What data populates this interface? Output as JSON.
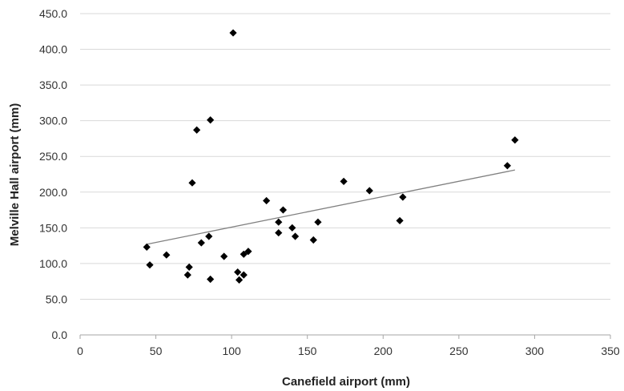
{
  "chart_data": {
    "type": "scatter",
    "xlabel": "Canefield airport (mm)",
    "ylabel": "Melville Hall airport (mm)",
    "xlim": [
      0,
      350
    ],
    "ylim": [
      0,
      450
    ],
    "xticks": [
      0,
      50,
      100,
      150,
      200,
      250,
      300,
      350
    ],
    "yticks": [
      0,
      50,
      100,
      150,
      200,
      250,
      300,
      350,
      400,
      450
    ],
    "x_tick_labels": [
      "0",
      "50",
      "100",
      "150",
      "200",
      "250",
      "300",
      "350"
    ],
    "y_tick_labels": [
      "0.0",
      "50.0",
      "100.0",
      "150.0",
      "200.0",
      "250.0",
      "300.0",
      "350.0",
      "400.0",
      "450.0"
    ],
    "grid": "horizontal",
    "legend": "none",
    "marker": "diamond",
    "marker_color": "#000000",
    "trendline_color": "#808080",
    "trendline": {
      "x": [
        44,
        287
      ],
      "y": [
        127,
        231
      ]
    },
    "points": [
      {
        "x": 44,
        "y": 123
      },
      {
        "x": 46,
        "y": 98
      },
      {
        "x": 57,
        "y": 112
      },
      {
        "x": 71,
        "y": 84
      },
      {
        "x": 72,
        "y": 95
      },
      {
        "x": 74,
        "y": 213
      },
      {
        "x": 77,
        "y": 287
      },
      {
        "x": 80,
        "y": 129
      },
      {
        "x": 85,
        "y": 138
      },
      {
        "x": 86,
        "y": 301
      },
      {
        "x": 86,
        "y": 78
      },
      {
        "x": 95,
        "y": 110
      },
      {
        "x": 101,
        "y": 423
      },
      {
        "x": 104,
        "y": 88
      },
      {
        "x": 105,
        "y": 77
      },
      {
        "x": 108,
        "y": 113
      },
      {
        "x": 108,
        "y": 84
      },
      {
        "x": 111,
        "y": 117
      },
      {
        "x": 123,
        "y": 188
      },
      {
        "x": 131,
        "y": 158
      },
      {
        "x": 131,
        "y": 143
      },
      {
        "x": 134,
        "y": 175
      },
      {
        "x": 140,
        "y": 150
      },
      {
        "x": 142,
        "y": 138
      },
      {
        "x": 154,
        "y": 133
      },
      {
        "x": 157,
        "y": 158
      },
      {
        "x": 174,
        "y": 215
      },
      {
        "x": 191,
        "y": 202
      },
      {
        "x": 211,
        "y": 160
      },
      {
        "x": 213,
        "y": 193
      },
      {
        "x": 282,
        "y": 237
      },
      {
        "x": 287,
        "y": 273
      }
    ]
  }
}
